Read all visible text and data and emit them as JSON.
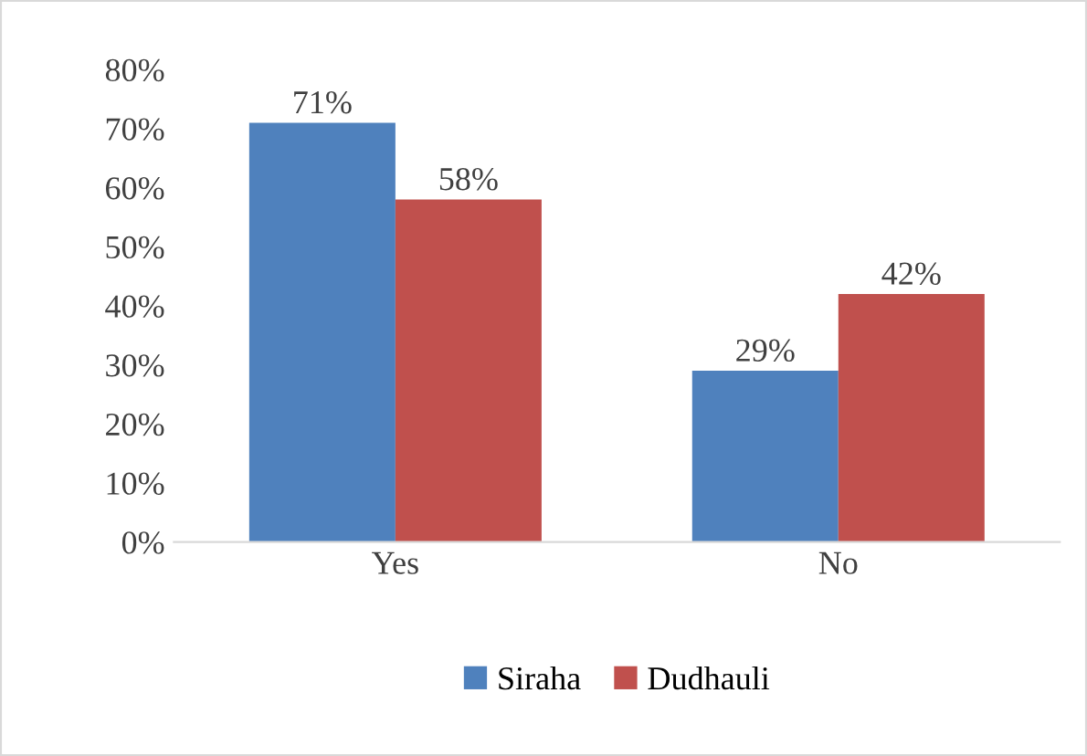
{
  "chart_data": {
    "type": "bar",
    "categories": [
      "Yes",
      "No"
    ],
    "series": [
      {
        "name": "Siraha",
        "color": "#4f81bd",
        "values": [
          71,
          29
        ],
        "value_labels": [
          "71%",
          "29%"
        ]
      },
      {
        "name": "Dudhauli",
        "color": "#c0504d",
        "values": [
          58,
          42
        ],
        "value_labels": [
          "58%",
          "42%"
        ]
      }
    ],
    "ylim": [
      0,
      80
    ],
    "yticks": [
      {
        "value": 0,
        "label": "0%"
      },
      {
        "value": 10,
        "label": "10%"
      },
      {
        "value": 20,
        "label": "20%"
      },
      {
        "value": 30,
        "label": "30%"
      },
      {
        "value": 40,
        "label": "40%"
      },
      {
        "value": 50,
        "label": "50%"
      },
      {
        "value": 60,
        "label": "60%"
      },
      {
        "value": 70,
        "label": "70%"
      },
      {
        "value": 80,
        "label": "80%"
      }
    ],
    "grid": false,
    "legend": "bottom"
  }
}
